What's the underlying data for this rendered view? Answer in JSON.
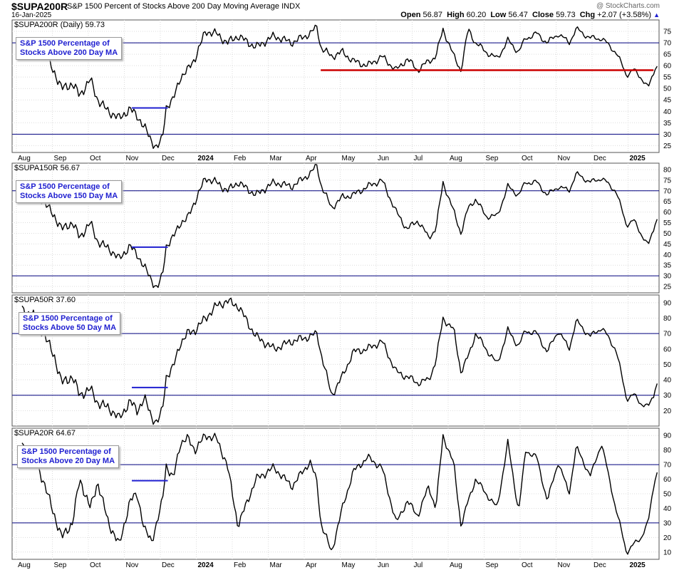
{
  "header": {
    "symbol": "$SUPA200R",
    "description": "S&P 1500 Percent of Stocks Above 200 Day Moving Average",
    "exchange": "INDX",
    "date": "16-Jan-2025",
    "brand": "@ StockCharts.com",
    "open_label": "Open",
    "open": "56.87",
    "high_label": "High",
    "high": "60.20",
    "low_label": "Low",
    "low": "56.47",
    "close_label": "Close",
    "close": "59.73",
    "chg_label": "Chg",
    "chg": "+2.07 (+3.58%)",
    "up_arrow": "▲"
  },
  "colors": {
    "price_line": "#000000",
    "threshold_line": "#00007f",
    "support_line": "#cc0000",
    "annotation_line": "#1f1fd0",
    "legend_text": "#1f1fd0"
  },
  "chart_data": [
    {
      "type": "line",
      "label": "$SUPA200R (Daily) 59.73",
      "legend": [
        "S&P 1500 Percentage of",
        "Stocks Above 200 Day MA"
      ],
      "ylim": [
        22,
        80
      ],
      "yticks": [
        25,
        30,
        35,
        40,
        45,
        50,
        55,
        60,
        65,
        70,
        75
      ],
      "hlines": [
        30,
        70
      ],
      "annotations": [
        {
          "type": "hline",
          "x": [
            3.05,
            4.05
          ],
          "y": 41.5,
          "color": "#1f1fd0"
        },
        {
          "type": "hline",
          "x": [
            8.3,
            17.55
          ],
          "y": 58,
          "color": "#cc0000"
        }
      ],
      "keypoints": [
        [
          0,
          68
        ],
        [
          0.3,
          70
        ],
        [
          0.6,
          66
        ],
        [
          0.9,
          57
        ],
        [
          1.1,
          50
        ],
        [
          1.4,
          52
        ],
        [
          1.6,
          47
        ],
        [
          1.9,
          54
        ],
        [
          2.1,
          45
        ],
        [
          2.4,
          40
        ],
        [
          2.7,
          37
        ],
        [
          3.0,
          41
        ],
        [
          3.2,
          38
        ],
        [
          3.4,
          33
        ],
        [
          3.6,
          27
        ],
        [
          3.75,
          24
        ],
        [
          3.9,
          28
        ],
        [
          4.0,
          42
        ],
        [
          4.2,
          45
        ],
        [
          4.4,
          55
        ],
        [
          4.6,
          58
        ],
        [
          4.8,
          63
        ],
        [
          5.1,
          75
        ],
        [
          5.4,
          74
        ],
        [
          5.7,
          70
        ],
        [
          6.0,
          73
        ],
        [
          6.5,
          68
        ],
        [
          7.0,
          73
        ],
        [
          7.5,
          70
        ],
        [
          8.0,
          74
        ],
        [
          8.2,
          77
        ],
        [
          8.3,
          68
        ],
        [
          8.6,
          64
        ],
        [
          8.9,
          66
        ],
        [
          9.2,
          62
        ],
        [
          9.6,
          60
        ],
        [
          10.0,
          64
        ],
        [
          10.4,
          58
        ],
        [
          10.7,
          63
        ],
        [
          11.0,
          58
        ],
        [
          11.3,
          62
        ],
        [
          11.5,
          64
        ],
        [
          11.7,
          76
        ],
        [
          12.0,
          64
        ],
        [
          12.2,
          58
        ],
        [
          12.4,
          76
        ],
        [
          12.6,
          70
        ],
        [
          12.9,
          66
        ],
        [
          13.2,
          63
        ],
        [
          13.5,
          71
        ],
        [
          13.8,
          66
        ],
        [
          14.0,
          72
        ],
        [
          14.3,
          74
        ],
        [
          14.6,
          70
        ],
        [
          14.9,
          74
        ],
        [
          15.2,
          70
        ],
        [
          15.4,
          76
        ],
        [
          15.8,
          72
        ],
        [
          16.1,
          72
        ],
        [
          16.5,
          66
        ],
        [
          16.8,
          56
        ],
        [
          17.0,
          58
        ],
        [
          17.2,
          55
        ],
        [
          17.4,
          50
        ],
        [
          17.55,
          57
        ],
        [
          17.65,
          59.73
        ]
      ]
    },
    {
      "type": "line",
      "label": "$SUPA150R 56.67",
      "legend": [
        "S&P 1500 Percentage of",
        "Stocks Above 150 Day MA"
      ],
      "ylim": [
        22,
        83
      ],
      "yticks": [
        25,
        30,
        35,
        40,
        45,
        50,
        55,
        60,
        65,
        70,
        75,
        80
      ],
      "hlines": [
        30,
        70
      ],
      "annotations": [
        {
          "type": "hline",
          "x": [
            3.05,
            4.05
          ],
          "y": 43.5,
          "color": "#1f1fd0"
        }
      ],
      "keypoints": [
        [
          0,
          70
        ],
        [
          0.3,
          72
        ],
        [
          0.6,
          65
        ],
        [
          0.9,
          58
        ],
        [
          1.1,
          52
        ],
        [
          1.4,
          55
        ],
        [
          1.6,
          48
        ],
        [
          1.9,
          55
        ],
        [
          2.1,
          46
        ],
        [
          2.4,
          43
        ],
        [
          2.7,
          38
        ],
        [
          3.0,
          44
        ],
        [
          3.2,
          40
        ],
        [
          3.4,
          34
        ],
        [
          3.6,
          28
        ],
        [
          3.75,
          24
        ],
        [
          3.9,
          30
        ],
        [
          4.0,
          44
        ],
        [
          4.2,
          48
        ],
        [
          4.4,
          55
        ],
        [
          4.6,
          57
        ],
        [
          4.8,
          65
        ],
        [
          5.1,
          76
        ],
        [
          5.4,
          74
        ],
        [
          5.7,
          70
        ],
        [
          6.0,
          74
        ],
        [
          6.5,
          68
        ],
        [
          7.0,
          74
        ],
        [
          7.5,
          72
        ],
        [
          8.0,
          78
        ],
        [
          8.2,
          82
        ],
        [
          8.3,
          73
        ],
        [
          8.6,
          62
        ],
        [
          8.9,
          67
        ],
        [
          9.2,
          68
        ],
        [
          9.6,
          72
        ],
        [
          10.0,
          75
        ],
        [
          10.4,
          60
        ],
        [
          10.7,
          52
        ],
        [
          11.0,
          56
        ],
        [
          11.3,
          48
        ],
        [
          11.5,
          52
        ],
        [
          11.7,
          74
        ],
        [
          12.0,
          60
        ],
        [
          12.2,
          50
        ],
        [
          12.4,
          62
        ],
        [
          12.6,
          66
        ],
        [
          12.9,
          58
        ],
        [
          13.2,
          58
        ],
        [
          13.5,
          72
        ],
        [
          13.8,
          68
        ],
        [
          14.0,
          74
        ],
        [
          14.3,
          74
        ],
        [
          14.6,
          68
        ],
        [
          14.9,
          72
        ],
        [
          15.2,
          70
        ],
        [
          15.4,
          78
        ],
        [
          15.8,
          74
        ],
        [
          16.1,
          76
        ],
        [
          16.5,
          70
        ],
        [
          16.8,
          54
        ],
        [
          17.0,
          56
        ],
        [
          17.2,
          50
        ],
        [
          17.4,
          44
        ],
        [
          17.55,
          52
        ],
        [
          17.65,
          56.67
        ]
      ]
    },
    {
      "type": "line",
      "label": "$SUPA50R 37.60",
      "legend": [
        "S&P 1500 Percentage of",
        "Stocks Above 50 Day MA"
      ],
      "ylim": [
        10,
        95
      ],
      "yticks": [
        20,
        30,
        40,
        50,
        60,
        70,
        80,
        90
      ],
      "hlines": [
        30,
        70
      ],
      "annotations": [
        {
          "type": "hline",
          "x": [
            3.05,
            4.05
          ],
          "y": 35,
          "color": "#1f1fd0"
        }
      ],
      "keypoints": [
        [
          0,
          85
        ],
        [
          0.3,
          82
        ],
        [
          0.6,
          70
        ],
        [
          0.9,
          55
        ],
        [
          1.1,
          38
        ],
        [
          1.4,
          42
        ],
        [
          1.6,
          30
        ],
        [
          1.9,
          34
        ],
        [
          2.1,
          25
        ],
        [
          2.4,
          22
        ],
        [
          2.7,
          15
        ],
        [
          3.0,
          26
        ],
        [
          3.2,
          20
        ],
        [
          3.4,
          28
        ],
        [
          3.6,
          16
        ],
        [
          3.75,
          12
        ],
        [
          3.9,
          20
        ],
        [
          4.0,
          42
        ],
        [
          4.2,
          48
        ],
        [
          4.4,
          64
        ],
        [
          4.6,
          70
        ],
        [
          4.8,
          72
        ],
        [
          5.1,
          80
        ],
        [
          5.4,
          88
        ],
        [
          5.7,
          91
        ],
        [
          6.0,
          88
        ],
        [
          6.5,
          68
        ],
        [
          7.0,
          60
        ],
        [
          7.5,
          65
        ],
        [
          8.0,
          68
        ],
        [
          8.2,
          70
        ],
        [
          8.3,
          58
        ],
        [
          8.6,
          30
        ],
        [
          8.9,
          42
        ],
        [
          9.2,
          58
        ],
        [
          9.6,
          60
        ],
        [
          10.0,
          65
        ],
        [
          10.4,
          45
        ],
        [
          10.7,
          42
        ],
        [
          11.0,
          38
        ],
        [
          11.3,
          40
        ],
        [
          11.5,
          52
        ],
        [
          11.7,
          80
        ],
        [
          12.0,
          72
        ],
        [
          12.2,
          45
        ],
        [
          12.4,
          55
        ],
        [
          12.6,
          70
        ],
        [
          12.9,
          60
        ],
        [
          13.2,
          50
        ],
        [
          13.5,
          72
        ],
        [
          13.8,
          62
        ],
        [
          14.0,
          72
        ],
        [
          14.3,
          70
        ],
        [
          14.6,
          58
        ],
        [
          14.9,
          72
        ],
        [
          15.2,
          60
        ],
        [
          15.4,
          78
        ],
        [
          15.8,
          68
        ],
        [
          16.1,
          74
        ],
        [
          16.5,
          60
        ],
        [
          16.8,
          28
        ],
        [
          17.0,
          30
        ],
        [
          17.2,
          25
        ],
        [
          17.4,
          22
        ],
        [
          17.55,
          30
        ],
        [
          17.65,
          37.6
        ]
      ]
    },
    {
      "type": "line",
      "label": "$SUPA20R 64.67",
      "legend": [
        "S&P 1500 Percentage of",
        "Stocks Above 20 Day MA"
      ],
      "ylim": [
        5,
        95
      ],
      "yticks": [
        10,
        20,
        30,
        40,
        50,
        60,
        70,
        80,
        90
      ],
      "hlines": [
        30,
        70
      ],
      "annotations": [
        {
          "type": "hline",
          "x": [
            3.05,
            4.05
          ],
          "y": 59,
          "color": "#1f1fd0"
        }
      ],
      "keypoints": [
        [
          0,
          82
        ],
        [
          0.3,
          78
        ],
        [
          0.6,
          58
        ],
        [
          0.9,
          35
        ],
        [
          1.1,
          20
        ],
        [
          1.4,
          30
        ],
        [
          1.6,
          60
        ],
        [
          1.9,
          40
        ],
        [
          2.1,
          58
        ],
        [
          2.4,
          30
        ],
        [
          2.7,
          15
        ],
        [
          3.0,
          45
        ],
        [
          3.2,
          50
        ],
        [
          3.4,
          25
        ],
        [
          3.6,
          18
        ],
        [
          3.75,
          30
        ],
        [
          3.9,
          45
        ],
        [
          4.0,
          70
        ],
        [
          4.2,
          60
        ],
        [
          4.4,
          85
        ],
        [
          4.6,
          88
        ],
        [
          4.8,
          80
        ],
        [
          5.1,
          90
        ],
        [
          5.4,
          88
        ],
        [
          5.7,
          70
        ],
        [
          6.0,
          28
        ],
        [
          6.5,
          60
        ],
        [
          7.0,
          68
        ],
        [
          7.5,
          55
        ],
        [
          8.0,
          72
        ],
        [
          8.2,
          58
        ],
        [
          8.3,
          30
        ],
        [
          8.6,
          10
        ],
        [
          8.9,
          40
        ],
        [
          9.2,
          65
        ],
        [
          9.6,
          75
        ],
        [
          10.0,
          68
        ],
        [
          10.4,
          30
        ],
        [
          10.7,
          45
        ],
        [
          11.0,
          35
        ],
        [
          11.3,
          55
        ],
        [
          11.5,
          40
        ],
        [
          11.7,
          90
        ],
        [
          12.0,
          70
        ],
        [
          12.2,
          28
        ],
        [
          12.4,
          45
        ],
        [
          12.6,
          60
        ],
        [
          12.9,
          50
        ],
        [
          13.2,
          40
        ],
        [
          13.5,
          85
        ],
        [
          13.8,
          38
        ],
        [
          14.0,
          80
        ],
        [
          14.3,
          75
        ],
        [
          14.6,
          45
        ],
        [
          14.9,
          72
        ],
        [
          15.2,
          50
        ],
        [
          15.4,
          82
        ],
        [
          15.8,
          62
        ],
        [
          16.1,
          85
        ],
        [
          16.5,
          40
        ],
        [
          16.8,
          10
        ],
        [
          17.0,
          15
        ],
        [
          17.2,
          20
        ],
        [
          17.4,
          30
        ],
        [
          17.55,
          55
        ],
        [
          17.65,
          64.67
        ]
      ]
    }
  ],
  "x_axis": {
    "labels": [
      "Aug",
      "Sep",
      "Oct",
      "Nov",
      "Dec",
      "2024",
      "Feb",
      "Mar",
      "Apr",
      "May",
      "Jun",
      "Jul",
      "Aug",
      "Sep",
      "Oct",
      "Nov",
      "Dec",
      "2025"
    ],
    "bold_labels": [
      "2024",
      "2025"
    ]
  }
}
